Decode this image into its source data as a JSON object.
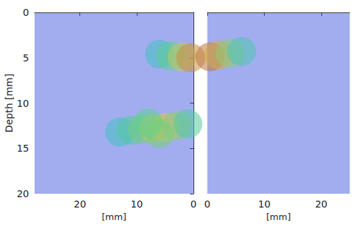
{
  "chart_data": {
    "type": "volume",
    "ylabel": "Depth [mm]",
    "ylim": [
      0,
      20
    ],
    "yticks": [
      0,
      5,
      10,
      15,
      20
    ],
    "xlabel": "[mm]",
    "xlim": [
      0,
      28
    ],
    "xticks": [
      0,
      10,
      20
    ],
    "x2label": "[mm]",
    "x2lim": [
      0,
      25
    ],
    "x2ticks": [
      0,
      10,
      20
    ],
    "intensity_range": [
      0,
      1
    ],
    "blobs": [
      {
        "axis": "x",
        "points": [
          [
            13,
            13.2,
            0.35
          ],
          [
            11,
            13,
            0.45
          ],
          [
            9,
            12.9,
            0.55
          ],
          [
            7,
            12.8,
            0.7
          ],
          [
            5,
            12.7,
            0.75
          ],
          [
            3,
            12.5,
            0.6
          ],
          [
            1,
            12.3,
            0.45
          ],
          [
            8,
            12.2,
            0.5
          ],
          [
            6,
            13.4,
            0.55
          ]
        ]
      },
      {
        "axis": "x",
        "points": [
          [
            6,
            4.6,
            0.35
          ],
          [
            4,
            4.8,
            0.5
          ],
          [
            2,
            4.9,
            0.7
          ],
          [
            0.5,
            5,
            0.85
          ]
        ]
      },
      {
        "axis": "x2",
        "points": [
          [
            0.5,
            4.9,
            0.9
          ],
          [
            2,
            4.7,
            0.8
          ],
          [
            4,
            4.5,
            0.6
          ],
          [
            6,
            4.3,
            0.4
          ]
        ]
      }
    ]
  }
}
